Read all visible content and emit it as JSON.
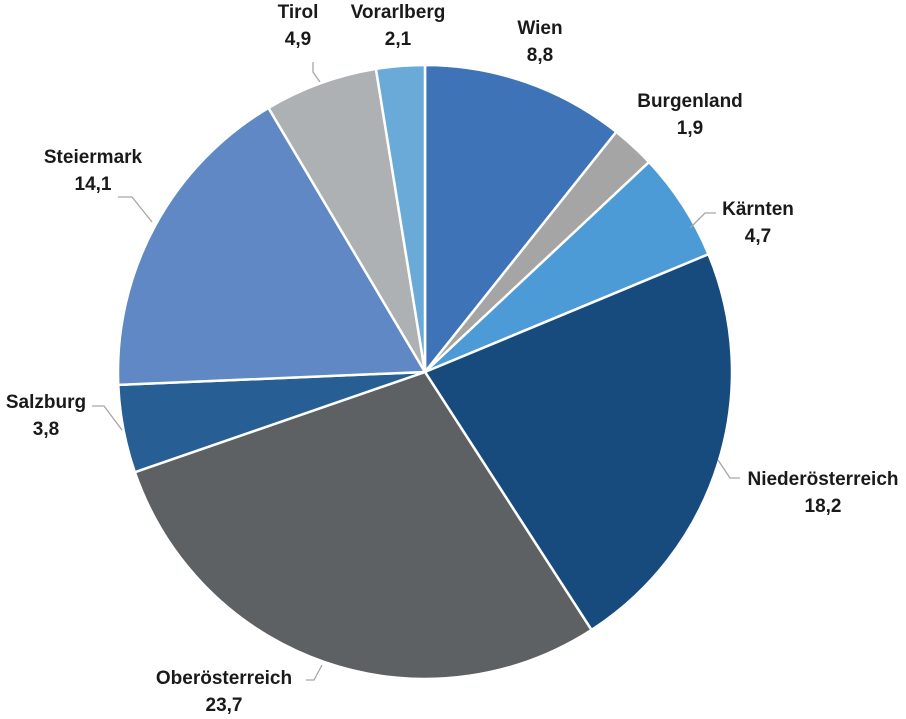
{
  "chart_data": {
    "type": "pie",
    "title": "",
    "legend": "none",
    "slices": [
      {
        "label": "Wien",
        "value": 8.8,
        "display": "8,8",
        "color": "#3f73b8"
      },
      {
        "label": "Burgenland",
        "value": 1.9,
        "display": "1,9",
        "color": "#a5a5a5"
      },
      {
        "label": "Kärnten",
        "value": 4.7,
        "display": "4,7",
        "color": "#4c9bd6"
      },
      {
        "label": "Niederösterreich",
        "value": 18.2,
        "display": "18,2",
        "color": "#174b7e"
      },
      {
        "label": "Oberösterreich",
        "value": 23.7,
        "display": "23,7",
        "color": "#5d6163"
      },
      {
        "label": "Salzburg",
        "value": 3.8,
        "display": "3,8",
        "color": "#275f95"
      },
      {
        "label": "Steiermark",
        "value": 14.1,
        "display": "14,1",
        "color": "#5f88c4"
      },
      {
        "label": "Tirol",
        "value": 4.9,
        "display": "4,9",
        "color": "#aeb1b3"
      },
      {
        "label": "Vorarlberg",
        "value": 2.1,
        "display": "2,1",
        "color": "#6aaad9"
      }
    ]
  }
}
